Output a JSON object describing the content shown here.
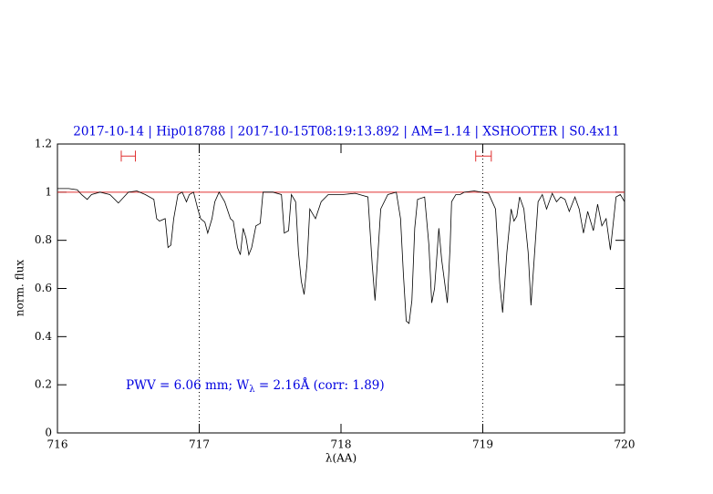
{
  "chart_data": {
    "type": "line",
    "title": "2017-10-14 | Hip018788 | 2017-10-15T08:19:13.892 | AM=1.14 | XSHOOTER | S0.4x11",
    "xlabel": "λ(AA)",
    "ylabel": "norm. flux",
    "annotation": [
      "PWV = 6.06 mm; W",
      "λ",
      " = 2.16Å (corr: 1.89)"
    ],
    "xlim": [
      716,
      720
    ],
    "ylim": [
      0,
      1.2
    ],
    "xticks": [
      716,
      717,
      718,
      719,
      720
    ],
    "yticks": [
      0,
      0.2,
      0.4,
      0.6,
      0.8,
      1,
      1.2
    ],
    "hline": 1,
    "hline_color": "#e03030",
    "vlines": [
      717,
      719
    ],
    "ranges": [
      {
        "x": [
          716.45,
          716.55
        ],
        "y": 1.15
      },
      {
        "x": [
          718.95,
          719.06
        ],
        "y": 1.15
      }
    ],
    "range_color": "#e03030",
    "title_color": "#0000e0",
    "series": [
      {
        "color": "#000000",
        "x": [
          716.0,
          716.08,
          716.14,
          716.17,
          716.21,
          716.24,
          716.3,
          716.37,
          716.43,
          716.5,
          716.56,
          716.62,
          716.68,
          716.7,
          716.72,
          716.76,
          716.78,
          716.8,
          716.82,
          716.85,
          716.88,
          716.91,
          716.93,
          716.96,
          716.99,
          717.01,
          717.04,
          717.06,
          717.09,
          717.11,
          717.14,
          717.18,
          717.22,
          717.24,
          717.27,
          717.29,
          717.31,
          717.33,
          717.35,
          717.37,
          717.4,
          717.43,
          717.45,
          717.52,
          717.58,
          717.6,
          717.63,
          717.65,
          717.68,
          717.7,
          717.72,
          717.74,
          717.76,
          717.78,
          717.82,
          717.86,
          717.91,
          718.01,
          718.1,
          718.19,
          718.22,
          718.24,
          718.26,
          718.28,
          718.33,
          718.39,
          718.42,
          718.44,
          718.46,
          718.48,
          718.5,
          718.52,
          718.54,
          718.59,
          718.62,
          718.64,
          718.66,
          718.69,
          718.71,
          718.75,
          718.77,
          718.78,
          718.81,
          718.84,
          718.87,
          718.94,
          719.04,
          719.09,
          719.12,
          719.14,
          719.17,
          719.2,
          719.22,
          719.24,
          719.26,
          719.29,
          719.32,
          719.34,
          719.36,
          719.39,
          719.42,
          719.45,
          719.49,
          719.52,
          719.55,
          719.58,
          719.61,
          719.65,
          719.68,
          719.71,
          719.74,
          719.78,
          719.81,
          719.84,
          719.87,
          719.9,
          719.94,
          719.97,
          720.0
        ],
        "values": [
          1.015,
          1.015,
          1.01,
          0.99,
          0.97,
          0.99,
          1.0,
          0.99,
          0.955,
          1.0,
          1.005,
          0.99,
          0.97,
          0.89,
          0.88,
          0.89,
          0.77,
          0.78,
          0.89,
          0.99,
          1.0,
          0.96,
          0.99,
          1.0,
          0.93,
          0.89,
          0.875,
          0.83,
          0.89,
          0.96,
          1.0,
          0.96,
          0.89,
          0.88,
          0.77,
          0.74,
          0.85,
          0.81,
          0.74,
          0.77,
          0.86,
          0.87,
          1.0,
          1.0,
          0.99,
          0.83,
          0.84,
          0.99,
          0.96,
          0.75,
          0.63,
          0.575,
          0.7,
          0.93,
          0.89,
          0.96,
          0.99,
          0.99,
          0.995,
          0.98,
          0.7,
          0.55,
          0.74,
          0.93,
          0.99,
          1.0,
          0.89,
          0.66,
          0.465,
          0.455,
          0.55,
          0.85,
          0.97,
          0.98,
          0.78,
          0.54,
          0.6,
          0.85,
          0.72,
          0.54,
          0.78,
          0.96,
          0.99,
          0.99,
          1.0,
          1.005,
          0.995,
          0.93,
          0.62,
          0.5,
          0.75,
          0.93,
          0.88,
          0.9,
          0.98,
          0.93,
          0.75,
          0.53,
          0.7,
          0.96,
          0.99,
          0.93,
          0.995,
          0.96,
          0.98,
          0.97,
          0.92,
          0.98,
          0.93,
          0.83,
          0.92,
          0.84,
          0.95,
          0.86,
          0.89,
          0.76,
          0.98,
          0.99,
          0.96
        ]
      }
    ]
  }
}
